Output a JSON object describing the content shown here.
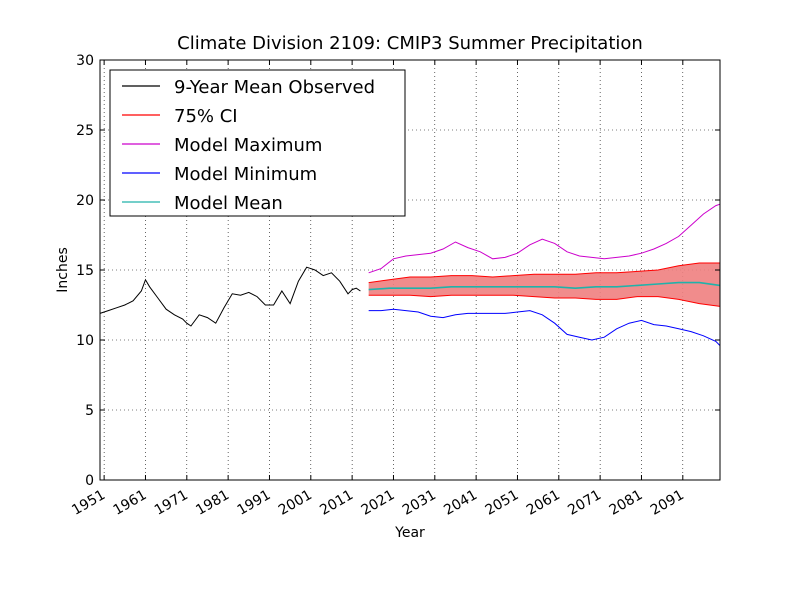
{
  "chart_data": {
    "type": "line",
    "title": "Climate Division 2109: CMIP3 Summer Precipitation",
    "xlabel": "Year",
    "ylabel": "Inches",
    "xlim": [
      1950,
      2100
    ],
    "ylim": [
      0,
      30
    ],
    "x_ticks": [
      1951,
      1961,
      1971,
      1981,
      1991,
      2001,
      2011,
      2021,
      2031,
      2041,
      2051,
      2061,
      2071,
      2081,
      2091
    ],
    "y_ticks": [
      0,
      5,
      10,
      15,
      20,
      25,
      30
    ],
    "grid": true,
    "legend_position": "top-left",
    "series": [
      {
        "name": "9-Year Mean Observed",
        "color": "#000000",
        "x": [
          1950,
          1952,
          1954,
          1956,
          1958,
          1960,
          1961,
          1962,
          1964,
          1966,
          1968,
          1970,
          1971,
          1972,
          1974,
          1976,
          1978,
          1980,
          1982,
          1984,
          1986,
          1988,
          1990,
          1992,
          1994,
          1996,
          1998,
          2000,
          2002,
          2004,
          2006,
          2008,
          2010,
          2011,
          2012,
          2013
        ],
        "y": [
          11.9,
          12.1,
          12.3,
          12.5,
          12.8,
          13.5,
          14.3,
          13.8,
          13.0,
          12.2,
          11.8,
          11.5,
          11.2,
          11.0,
          11.8,
          11.6,
          11.2,
          12.3,
          13.3,
          13.2,
          13.4,
          13.1,
          12.5,
          12.5,
          13.5,
          12.6,
          14.2,
          15.2,
          15.0,
          14.6,
          14.8,
          14.2,
          13.3,
          13.6,
          13.7,
          13.5
        ]
      },
      {
        "name": "75% CI",
        "color": "#ff0000",
        "fill": "#f08080",
        "x": [
          2015,
          2020,
          2025,
          2030,
          2035,
          2040,
          2045,
          2050,
          2055,
          2060,
          2065,
          2070,
          2075,
          2080,
          2085,
          2090,
          2095,
          2100
        ],
        "upper": [
          14.1,
          14.3,
          14.5,
          14.5,
          14.6,
          14.6,
          14.5,
          14.6,
          14.7,
          14.7,
          14.7,
          14.8,
          14.8,
          14.9,
          15.0,
          15.3,
          15.5,
          15.5
        ],
        "lower": [
          13.2,
          13.2,
          13.2,
          13.1,
          13.2,
          13.2,
          13.2,
          13.2,
          13.1,
          13.0,
          13.0,
          12.9,
          12.9,
          13.1,
          13.1,
          12.9,
          12.6,
          12.4
        ]
      },
      {
        "name": "Model Maximum",
        "color": "#cc00cc",
        "x": [
          2015,
          2018,
          2021,
          2024,
          2027,
          2030,
          2033,
          2036,
          2039,
          2042,
          2045,
          2048,
          2051,
          2054,
          2057,
          2060,
          2063,
          2066,
          2069,
          2072,
          2075,
          2078,
          2081,
          2084,
          2087,
          2090,
          2093,
          2096,
          2099,
          2100
        ],
        "y": [
          14.8,
          15.1,
          15.8,
          16.0,
          16.1,
          16.2,
          16.5,
          17.0,
          16.6,
          16.3,
          15.8,
          15.9,
          16.2,
          16.8,
          17.2,
          16.9,
          16.3,
          16.0,
          15.9,
          15.8,
          15.9,
          16.0,
          16.2,
          16.5,
          16.9,
          17.4,
          18.2,
          19.0,
          19.6,
          19.7
        ]
      },
      {
        "name": "Model Minimum",
        "color": "#0000ff",
        "x": [
          2015,
          2018,
          2021,
          2024,
          2027,
          2030,
          2033,
          2036,
          2039,
          2042,
          2045,
          2048,
          2051,
          2054,
          2057,
          2060,
          2063,
          2066,
          2069,
          2072,
          2075,
          2078,
          2081,
          2084,
          2087,
          2090,
          2093,
          2096,
          2099,
          2100
        ],
        "y": [
          12.1,
          12.1,
          12.2,
          12.1,
          12.0,
          11.7,
          11.6,
          11.8,
          11.9,
          11.9,
          11.9,
          11.9,
          12.0,
          12.1,
          11.8,
          11.2,
          10.4,
          10.2,
          10.0,
          10.2,
          10.8,
          11.2,
          11.4,
          11.1,
          11.0,
          10.8,
          10.6,
          10.3,
          9.9,
          9.6
        ]
      },
      {
        "name": "Model Mean",
        "color": "#20b2aa",
        "x": [
          2015,
          2020,
          2025,
          2030,
          2035,
          2040,
          2045,
          2050,
          2055,
          2060,
          2065,
          2070,
          2075,
          2080,
          2085,
          2090,
          2095,
          2100
        ],
        "y": [
          13.6,
          13.7,
          13.7,
          13.7,
          13.8,
          13.8,
          13.8,
          13.8,
          13.8,
          13.8,
          13.7,
          13.8,
          13.8,
          13.9,
          14.0,
          14.1,
          14.1,
          13.9
        ]
      }
    ]
  }
}
